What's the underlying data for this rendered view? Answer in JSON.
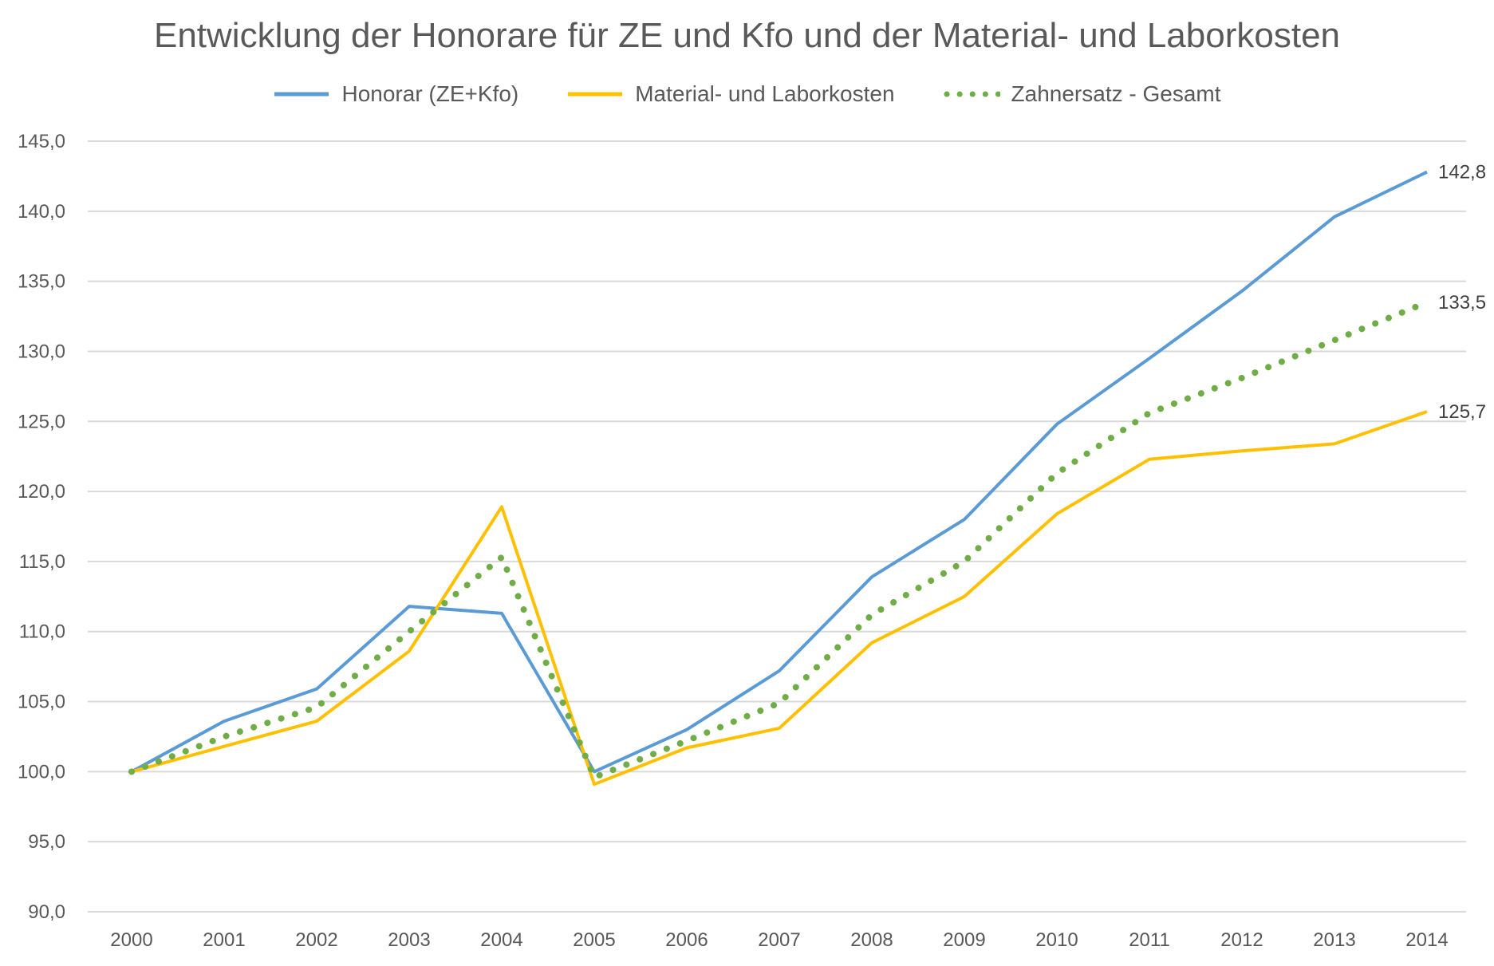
{
  "chart_data": {
    "type": "line",
    "title": "Entwicklung der Honorare für ZE und Kfo und der Material- und Laborkosten",
    "xlabel": "",
    "ylabel": "",
    "ylim": [
      90,
      145
    ],
    "ytick_step": 5,
    "grid": true,
    "legend_position": "top-center",
    "categories": [
      "2000",
      "2001",
      "2002",
      "2003",
      "2004",
      "2005",
      "2006",
      "2007",
      "2008",
      "2009",
      "2010",
      "2011",
      "2012",
      "2013",
      "2014"
    ],
    "yticks": [
      "90,0",
      "95,0",
      "100,0",
      "105,0",
      "110,0",
      "115,0",
      "120,0",
      "125,0",
      "130,0",
      "135,0",
      "140,0",
      "145,0"
    ],
    "series": [
      {
        "name": "Honorar (ZE+Kfo)",
        "color": "#5B9BD5",
        "style": "solid",
        "values": [
          100.0,
          103.6,
          105.9,
          111.8,
          111.3,
          100.0,
          103.0,
          107.2,
          113.9,
          118.0,
          124.8,
          129.5,
          134.3,
          139.6,
          142.8
        ],
        "end_label": "142,8"
      },
      {
        "name": "Material- und Laborkosten",
        "color": "#FFC000",
        "style": "solid",
        "values": [
          100.0,
          101.8,
          103.6,
          108.6,
          118.9,
          99.1,
          101.7,
          103.1,
          109.2,
          112.5,
          118.4,
          122.3,
          122.9,
          123.4,
          125.7
        ],
        "end_label": "125,7"
      },
      {
        "name": "Zahnersatz - Gesamt",
        "color": "#70AD47",
        "style": "dotted",
        "values": [
          100.0,
          102.5,
          104.6,
          110.0,
          115.3,
          99.6,
          102.2,
          104.9,
          111.2,
          115.0,
          121.3,
          125.6,
          128.1,
          130.8,
          133.5
        ],
        "end_label": "133,5"
      }
    ]
  }
}
